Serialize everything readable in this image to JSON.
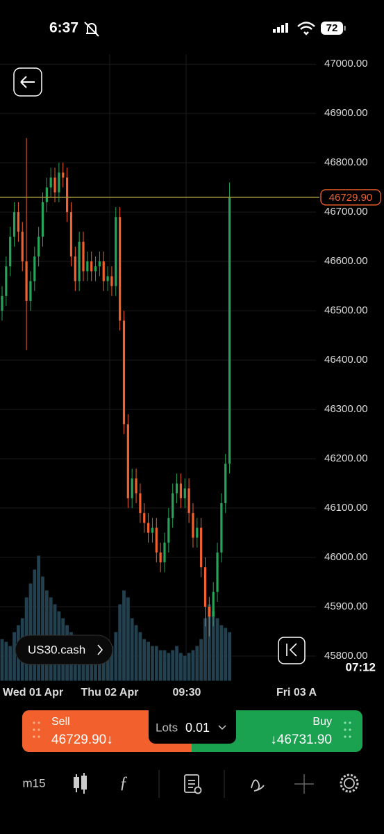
{
  "status_bar": {
    "time": "6:37",
    "battery": "72"
  },
  "chart_data": {
    "type": "candlestick",
    "ylim": [
      45750,
      47020
    ],
    "yticks": [
      {
        "value": 45800,
        "label": "45800.00"
      },
      {
        "value": 45900,
        "label": "45900.00"
      },
      {
        "value": 46000,
        "label": "46000.00"
      },
      {
        "value": 46100,
        "label": "46100.00"
      },
      {
        "value": 46200,
        "label": "46200.00"
      },
      {
        "value": 46300,
        "label": "46300.00"
      },
      {
        "value": 46400,
        "label": "46400.00"
      },
      {
        "value": 46500,
        "label": "46500.00"
      },
      {
        "value": 46600,
        "label": "46600.00"
      },
      {
        "value": 46700,
        "label": "46700.00"
      },
      {
        "value": 46800,
        "label": "46800.00"
      },
      {
        "value": 46900,
        "label": "46900.00"
      },
      {
        "value": 47000,
        "label": "47000.00"
      }
    ],
    "xlabels": [
      "Wed 01 Apr",
      "Thu 02 Apr",
      "09:30",
      "Fri 03 A"
    ],
    "up_color": "#27a35a",
    "down_color": "#f2612d",
    "open": [
      46500,
      46530,
      46590,
      46650,
      46700,
      46660,
      46600,
      46520,
      46560,
      46610,
      46650,
      46720,
      46750,
      46770,
      46740,
      46780,
      46770,
      46700,
      46610,
      46560,
      46640,
      46580,
      46600,
      46580,
      46590,
      46600,
      46560,
      46570,
      46550,
      46690,
      46480,
      46270,
      46120,
      46160,
      46130,
      46090,
      46070,
      46050,
      46060,
      46010,
      45990,
      46030,
      46080,
      46130,
      46150,
      46120,
      46140,
      46090,
      46040,
      46060,
      45980,
      45900,
      45880,
      45930,
      46010,
      46110,
      46190
    ],
    "high": [
      46550,
      46610,
      46670,
      46720,
      46720,
      46680,
      46850,
      46580,
      46630,
      46670,
      46740,
      46770,
      46790,
      46790,
      46800,
      46800,
      46790,
      46720,
      46630,
      46660,
      46660,
      46620,
      46620,
      46610,
      46620,
      46620,
      46590,
      46590,
      46710,
      46710,
      46500,
      46290,
      46180,
      46180,
      46150,
      46110,
      46090,
      46080,
      46080,
      46030,
      46050,
      46100,
      46150,
      46170,
      46170,
      46160,
      46160,
      46110,
      46080,
      46080,
      46000,
      45920,
      45950,
      46030,
      46130,
      46210,
      46760
    ],
    "low": [
      46480,
      46510,
      46570,
      46630,
      46640,
      46580,
      46420,
      46500,
      46540,
      46590,
      46630,
      46700,
      46730,
      46720,
      46720,
      46750,
      46680,
      46590,
      46540,
      46540,
      46560,
      46560,
      46560,
      46560,
      46570,
      46540,
      46540,
      46530,
      46530,
      46460,
      46250,
      46100,
      46100,
      46110,
      46070,
      46050,
      46030,
      46030,
      45990,
      45970,
      45970,
      46010,
      46060,
      46110,
      46100,
      46100,
      46070,
      46020,
      46020,
      45960,
      45860,
      45840,
      45860,
      45910,
      45990,
      46090,
      46170
    ],
    "close": [
      46530,
      46590,
      46650,
      46700,
      46660,
      46600,
      46520,
      46560,
      46610,
      46650,
      46720,
      46750,
      46770,
      46740,
      46780,
      46770,
      46700,
      46610,
      46560,
      46640,
      46580,
      46600,
      46580,
      46590,
      46600,
      46560,
      46570,
      46550,
      46690,
      46480,
      46270,
      46120,
      46160,
      46130,
      46090,
      46070,
      46050,
      46060,
      46010,
      45990,
      46030,
      46080,
      46130,
      46150,
      46120,
      46140,
      46090,
      46040,
      46060,
      45980,
      45900,
      45880,
      45930,
      46010,
      46110,
      46190,
      46729.9
    ],
    "volume": [
      30,
      28,
      25,
      35,
      40,
      45,
      60,
      70,
      80,
      90,
      75,
      65,
      60,
      55,
      50,
      45,
      40,
      35,
      30,
      30,
      28,
      25,
      25,
      22,
      20,
      20,
      18,
      25,
      35,
      55,
      65,
      60,
      45,
      40,
      35,
      30,
      28,
      25,
      25,
      22,
      22,
      20,
      22,
      25,
      20,
      18,
      20,
      22,
      25,
      30,
      45,
      55,
      50,
      45,
      40,
      38,
      35
    ],
    "volume_lim": [
      0,
      100
    ],
    "price_line": {
      "value": 46729.9,
      "label": "46729.90"
    },
    "countdown": "07:12"
  },
  "symbol": "US30.cash",
  "trade": {
    "sell_label": "Sell",
    "sell_price": "46729.90↓",
    "lots_label": "Lots",
    "lots_value": "0.01",
    "buy_label": "Buy",
    "buy_price": "↓46731.90"
  },
  "toolbar": {
    "timeframe": "m15"
  }
}
